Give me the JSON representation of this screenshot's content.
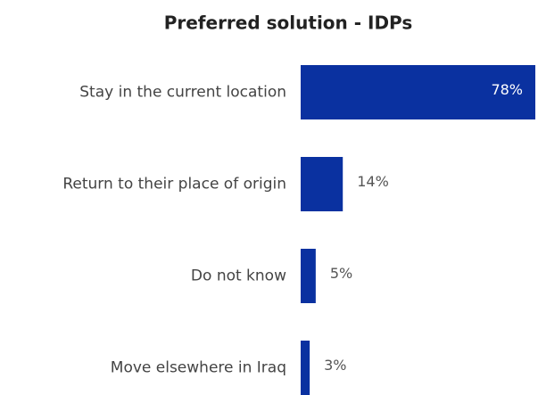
{
  "chart_data": {
    "type": "hbar",
    "title": "Preferred solution - IDPs",
    "categories": [
      "Stay in the current location",
      "Return to their place of origin",
      "Do not know",
      "Move elsewhere in Iraq"
    ],
    "values": [
      78,
      14,
      5,
      3
    ],
    "value_labels": [
      "78%",
      "14%",
      "5%",
      "3%"
    ],
    "color": "#0a31a0"
  }
}
